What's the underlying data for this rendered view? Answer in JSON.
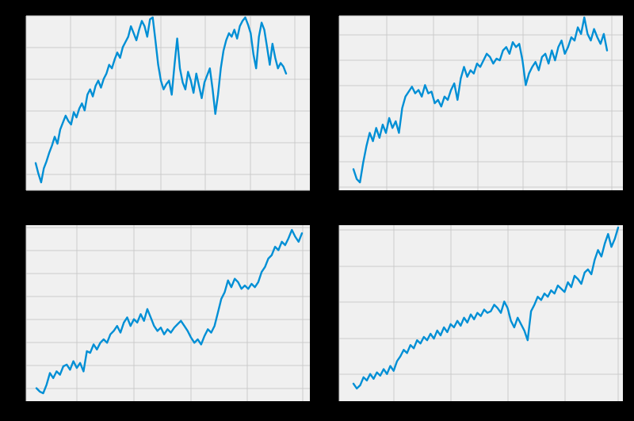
{
  "figure": {
    "background": "#000000",
    "panel_background": "#f0f0f0",
    "grid_color": "#cbcbcb",
    "line_color": "#008fd5"
  },
  "chart_data": [
    {
      "type": "line",
      "title": "",
      "xlabel": "",
      "ylabel": "",
      "grid": true,
      "series": [
        {
          "values": [
            0.16,
            0.1,
            0.05,
            0.13,
            0.17,
            0.22,
            0.26,
            0.31,
            0.27,
            0.35,
            0.39,
            0.43,
            0.4,
            0.38,
            0.45,
            0.42,
            0.47,
            0.5,
            0.46,
            0.55,
            0.58,
            0.54,
            0.6,
            0.63,
            0.59,
            0.64,
            0.67,
            0.72,
            0.7,
            0.75,
            0.79,
            0.76,
            0.82,
            0.85,
            0.88,
            0.94,
            0.9,
            0.86,
            0.92,
            0.97,
            0.94,
            0.88,
            0.98,
            0.99,
            0.86,
            0.72,
            0.63,
            0.58,
            0.61,
            0.63,
            0.55,
            0.72,
            0.87,
            0.7,
            0.62,
            0.58,
            0.68,
            0.63,
            0.56,
            0.67,
            0.6,
            0.53,
            0.62,
            0.66,
            0.7,
            0.58,
            0.44,
            0.55,
            0.7,
            0.8,
            0.86,
            0.9,
            0.88,
            0.92,
            0.87,
            0.94,
            0.97,
            0.99,
            0.95,
            0.9,
            0.78,
            0.7,
            0.88,
            0.96,
            0.92,
            0.82,
            0.72,
            0.84,
            0.76,
            0.7,
            0.73,
            0.71,
            0.67
          ]
        }
      ]
    },
    {
      "type": "line",
      "title": "",
      "xlabel": "",
      "ylabel": "",
      "grid": true,
      "series": [
        {
          "values": [
            0.08,
            0.02,
            0.0,
            0.12,
            0.22,
            0.3,
            0.25,
            0.33,
            0.27,
            0.35,
            0.3,
            0.39,
            0.33,
            0.37,
            0.3,
            0.45,
            0.52,
            0.55,
            0.58,
            0.54,
            0.56,
            0.52,
            0.59,
            0.54,
            0.55,
            0.48,
            0.5,
            0.46,
            0.52,
            0.5,
            0.56,
            0.6,
            0.5,
            0.63,
            0.7,
            0.64,
            0.68,
            0.66,
            0.72,
            0.7,
            0.74,
            0.78,
            0.76,
            0.72,
            0.75,
            0.74,
            0.8,
            0.82,
            0.78,
            0.85,
            0.82,
            0.84,
            0.74,
            0.59,
            0.66,
            0.7,
            0.73,
            0.68,
            0.76,
            0.78,
            0.72,
            0.8,
            0.74,
            0.82,
            0.86,
            0.78,
            0.82,
            0.88,
            0.86,
            0.94,
            0.9,
            1.0,
            0.9,
            0.86,
            0.93,
            0.88,
            0.84,
            0.9,
            0.8
          ]
        }
      ]
    },
    {
      "type": "line",
      "title": "",
      "xlabel": "",
      "ylabel": "",
      "grid": true,
      "series": [
        {
          "values": [
            0.03,
            0.01,
            0.0,
            0.05,
            0.12,
            0.09,
            0.13,
            0.11,
            0.16,
            0.17,
            0.14,
            0.19,
            0.15,
            0.18,
            0.13,
            0.25,
            0.24,
            0.29,
            0.26,
            0.3,
            0.32,
            0.3,
            0.35,
            0.37,
            0.4,
            0.36,
            0.42,
            0.45,
            0.4,
            0.44,
            0.42,
            0.47,
            0.43,
            0.5,
            0.45,
            0.4,
            0.37,
            0.39,
            0.35,
            0.38,
            0.36,
            0.39,
            0.41,
            0.43,
            0.4,
            0.37,
            0.33,
            0.3,
            0.32,
            0.29,
            0.34,
            0.38,
            0.36,
            0.4,
            0.48,
            0.56,
            0.6,
            0.67,
            0.63,
            0.68,
            0.66,
            0.62,
            0.64,
            0.62,
            0.65,
            0.63,
            0.66,
            0.72,
            0.75,
            0.8,
            0.82,
            0.87,
            0.85,
            0.9,
            0.88,
            0.92,
            0.97,
            0.93,
            0.9,
            0.95
          ]
        }
      ]
    },
    {
      "type": "line",
      "title": "",
      "xlabel": "",
      "ylabel": "",
      "grid": true,
      "series": [
        {
          "values": [
            0.03,
            0.0,
            0.02,
            0.07,
            0.05,
            0.09,
            0.06,
            0.1,
            0.08,
            0.12,
            0.09,
            0.14,
            0.11,
            0.17,
            0.2,
            0.24,
            0.22,
            0.27,
            0.25,
            0.3,
            0.28,
            0.32,
            0.3,
            0.34,
            0.31,
            0.36,
            0.33,
            0.38,
            0.35,
            0.4,
            0.38,
            0.42,
            0.39,
            0.44,
            0.41,
            0.46,
            0.43,
            0.47,
            0.45,
            0.49,
            0.47,
            0.48,
            0.52,
            0.5,
            0.47,
            0.54,
            0.5,
            0.42,
            0.38,
            0.44,
            0.4,
            0.36,
            0.3,
            0.48,
            0.52,
            0.57,
            0.55,
            0.59,
            0.57,
            0.61,
            0.59,
            0.64,
            0.62,
            0.6,
            0.66,
            0.63,
            0.7,
            0.68,
            0.65,
            0.72,
            0.74,
            0.71,
            0.8,
            0.86,
            0.82,
            0.9,
            0.96,
            0.88,
            0.93,
            1.0
          ]
        }
      ]
    }
  ]
}
